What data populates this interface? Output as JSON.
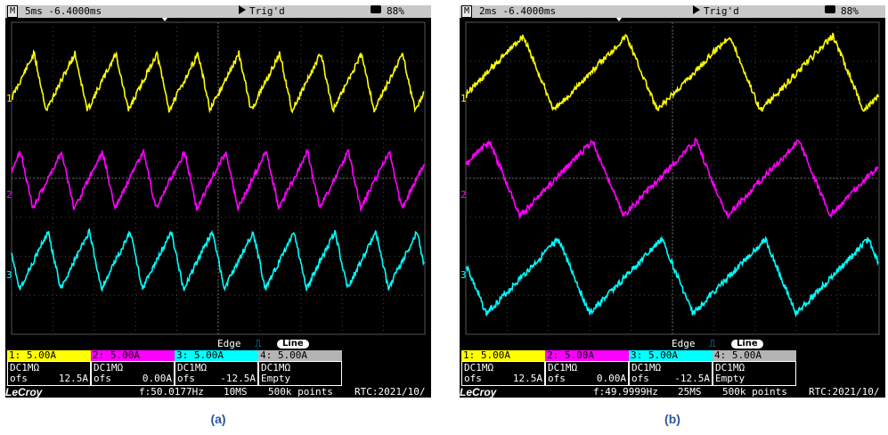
{
  "panels": [
    {
      "id": "a",
      "topbar": {
        "mode": "M",
        "timebase": "5ms -6.4000ms",
        "trigger": "Trig'd",
        "battery": "88%"
      },
      "ch_markers": [
        "1",
        "2",
        "3"
      ],
      "trigger_type": "Edge",
      "coupling_button": "Line",
      "channels": [
        {
          "label": "1: 5.00A",
          "coupling": "DC1MΩ",
          "ofs_label": "ofs",
          "ofs": "12.5A",
          "color": "#ffff00"
        },
        {
          "label": "2: 5.00A",
          "coupling": "DC1MΩ",
          "ofs_label": "ofs",
          "ofs": "0.00A",
          "color": "#ff00ff"
        },
        {
          "label": "3: 5.00A",
          "coupling": "DC1MΩ",
          "ofs_label": "ofs",
          "ofs": "-12.5A",
          "color": "#00ffff"
        },
        {
          "label": "4: 5.00A",
          "coupling": "DC1MΩ",
          "status": "Empty",
          "color": "#b4b4b4"
        }
      ],
      "brand": "LeCroy",
      "frequency": "f:50.0177Hz",
      "sample_rate": "10MS",
      "points": "500k points",
      "rtc": "RTC:2021/10/",
      "caption": "(a)"
    },
    {
      "id": "b",
      "topbar": {
        "mode": "M",
        "timebase": "2ms -6.4000ms",
        "trigger": "Trig'd",
        "battery": "88%"
      },
      "ch_markers": [
        "1",
        "2",
        "3"
      ],
      "trigger_type": "Edge",
      "coupling_button": "Line",
      "channels": [
        {
          "label": "1: 5.00A",
          "coupling": "DC1MΩ",
          "ofs_label": "ofs",
          "ofs": "12.5A",
          "color": "#ffff00"
        },
        {
          "label": "2: 5.00A",
          "coupling": "DC1MΩ",
          "ofs_label": "ofs",
          "ofs": "0.00A",
          "color": "#ff00ff"
        },
        {
          "label": "3: 5.00A",
          "coupling": "DC1MΩ",
          "ofs_label": "ofs",
          "ofs": "-12.5A",
          "color": "#00ffff"
        },
        {
          "label": "4: 5.00A",
          "coupling": "DC1MΩ",
          "status": "Empty",
          "color": "#b4b4b4"
        }
      ],
      "brand": "LeCroy",
      "frequency": "f:49.9999Hz",
      "sample_rate": "25MS",
      "points": "500k points",
      "rtc": "RTC:2021/10/",
      "caption": "(b)"
    }
  ]
}
